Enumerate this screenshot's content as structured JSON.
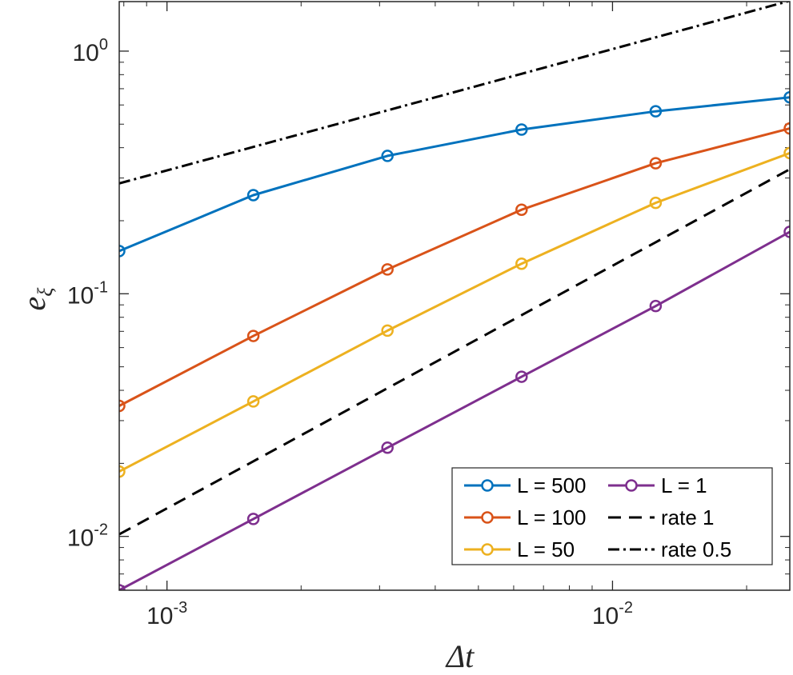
{
  "chart_data": {
    "type": "line",
    "xscale": "log",
    "yscale": "log",
    "xlim": [
      0.00078125,
      0.025
    ],
    "ylim": [
      0.006,
      1.6
    ],
    "x": [
      0.00078125,
      0.0015625,
      0.003125,
      0.00625,
      0.0125,
      0.025
    ],
    "xticks": [
      {
        "value": 0.001,
        "base": "10",
        "exp": "-3"
      },
      {
        "value": 0.01,
        "base": "10",
        "exp": "-2"
      }
    ],
    "yticks": [
      {
        "value": 0.01,
        "base": "10",
        "exp": "-2"
      },
      {
        "value": 0.1,
        "base": "10",
        "exp": "-1"
      },
      {
        "value": 1,
        "base": "10",
        "exp": "0"
      }
    ],
    "xlabel": {
      "main": "Δt"
    },
    "ylabel": {
      "main": "e",
      "sub": "ξ"
    },
    "series": [
      {
        "name": "L = 500",
        "color": "#0072BD",
        "style": "solid",
        "marker": "circle",
        "values": [
          0.15,
          0.255,
          0.37,
          0.475,
          0.565,
          0.645
        ]
      },
      {
        "name": "L = 100",
        "color": "#D95319",
        "style": "solid",
        "marker": "circle",
        "values": [
          0.0345,
          0.067,
          0.126,
          0.222,
          0.345,
          0.48
        ]
      },
      {
        "name": "L = 50",
        "color": "#EDB120",
        "style": "solid",
        "marker": "circle",
        "values": [
          0.0185,
          0.036,
          0.0705,
          0.133,
          0.237,
          0.38
        ]
      },
      {
        "name": "L = 1",
        "color": "#7E2F8E",
        "style": "solid",
        "marker": "circle",
        "values": [
          0.006,
          0.0118,
          0.0232,
          0.0455,
          0.089,
          0.18
        ]
      },
      {
        "name": "rate 1",
        "color": "#000000",
        "style": "dashed",
        "marker": "none",
        "values": [
          0.0102,
          0.0204,
          0.0408,
          0.0816,
          0.163,
          0.326
        ]
      },
      {
        "name": "rate 0.5",
        "color": "#000000",
        "style": "dashdot",
        "marker": "none",
        "values": [
          0.285,
          0.403,
          0.57,
          0.806,
          1.14,
          1.612
        ]
      }
    ],
    "legend": {
      "location": "bottom-right",
      "columns": 2
    }
  }
}
